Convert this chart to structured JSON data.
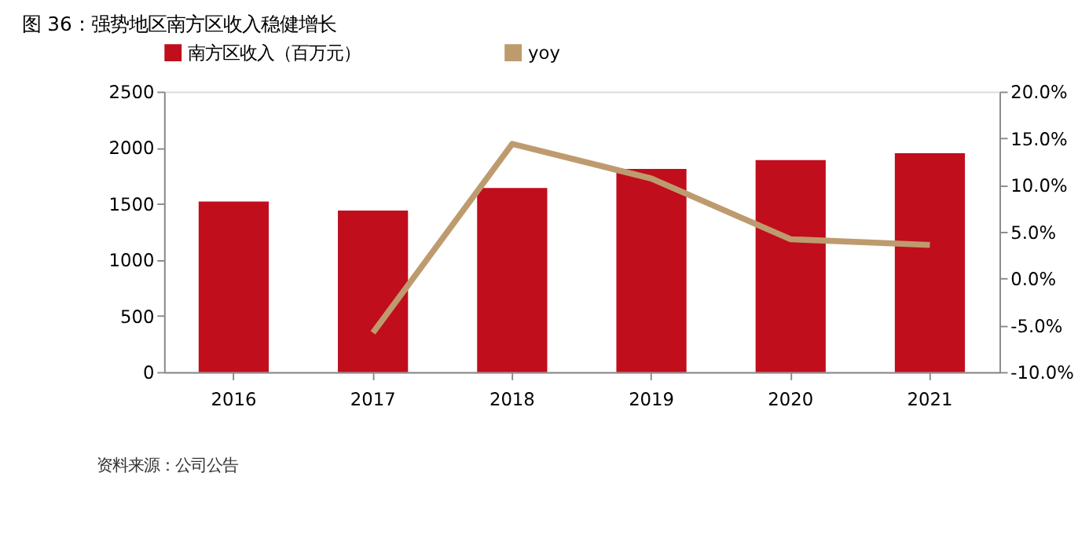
{
  "chart_data": {
    "type": "bar",
    "title": "图 36：强势地区南方区收入稳健增长",
    "categories": [
      "2016",
      "2017",
      "2018",
      "2019",
      "2020",
      "2021"
    ],
    "series": [
      {
        "name": "南方区收入（百万元）",
        "color": "#c00e1c",
        "values": [
          1520,
          1440,
          1640,
          1810,
          1890,
          1950
        ]
      },
      {
        "name": "yoy",
        "type": "line",
        "axis": "y2",
        "color": "#be9b6e",
        "values": [
          null,
          -5.8,
          14.4,
          10.7,
          4.2,
          3.6
        ]
      }
    ],
    "ylim": [
      0,
      2500
    ],
    "yticks": [
      0,
      500,
      1000,
      1500,
      2000,
      2500
    ],
    "y2lim": [
      -10,
      20
    ],
    "y2ticks": [
      {
        "value": -10,
        "label": "-10.0%"
      },
      {
        "value": -5,
        "label": "-5.0%"
      },
      {
        "value": 0,
        "label": "0.0%"
      },
      {
        "value": 5,
        "label": "5.0%"
      },
      {
        "value": 10,
        "label": "10.0%"
      },
      {
        "value": 15,
        "label": "15.0%"
      },
      {
        "value": 20,
        "label": "20.0%"
      }
    ],
    "grid": false,
    "legend": "top",
    "annotations": [
      "资料来源：公司公告"
    ]
  }
}
